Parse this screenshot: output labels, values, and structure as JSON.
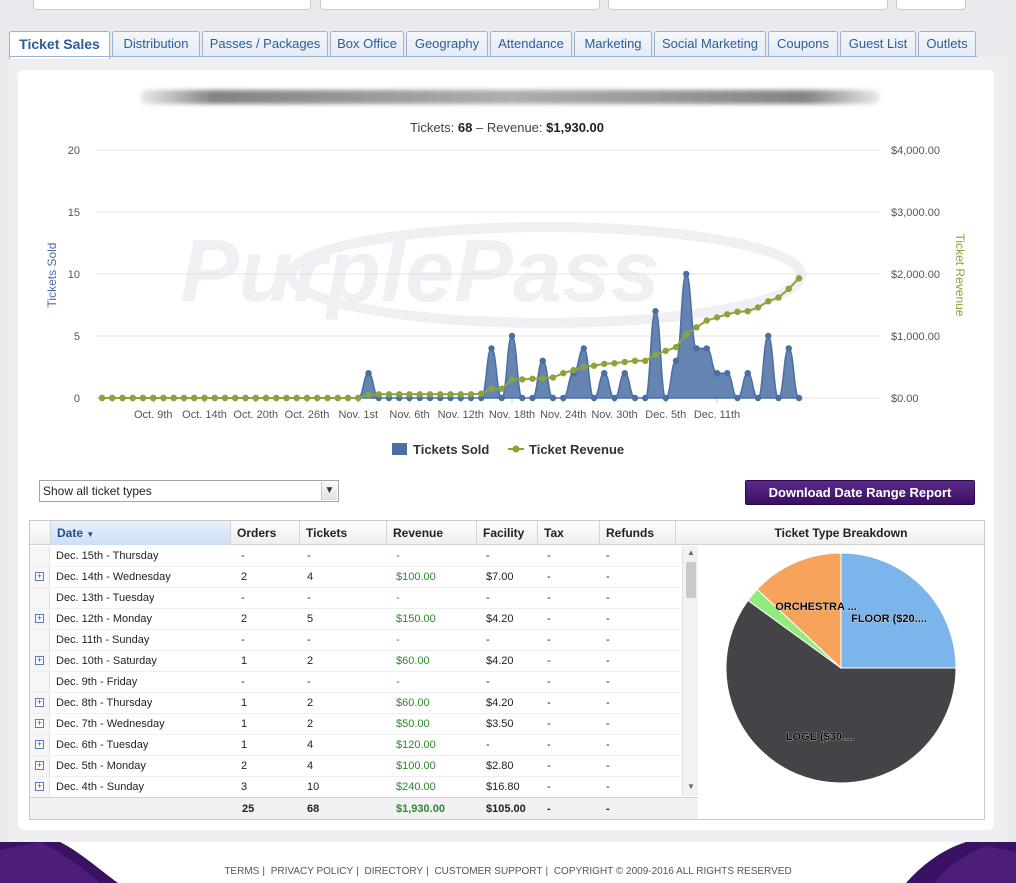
{
  "tabs": [
    {
      "label": "Ticket Sales",
      "active": true
    },
    {
      "label": "Distribution"
    },
    {
      "label": "Passes / Packages"
    },
    {
      "label": "Box Office"
    },
    {
      "label": "Geography"
    },
    {
      "label": "Attendance"
    },
    {
      "label": "Marketing"
    },
    {
      "label": "Social Marketing"
    },
    {
      "label": "Coupons"
    },
    {
      "label": "Guest List"
    },
    {
      "label": "Outlets"
    }
  ],
  "summary": {
    "tickets_label": "Tickets:",
    "tickets_value": "68",
    "sep": "–",
    "revenue_label": "Revenue:",
    "revenue_value": "$1,930.00"
  },
  "watermark": "PurplePass",
  "chart_data": {
    "type": "area",
    "xlabel": "",
    "ylabel": "Tickets Sold",
    "y2label": "Ticket Revenue",
    "ylim": [
      0,
      20
    ],
    "y2lim": [
      0,
      4000
    ],
    "yticks": [
      "0",
      "5",
      "10",
      "15",
      "20"
    ],
    "y2ticks": [
      "$0.00",
      "$1,000.00",
      "$2,000.00",
      "$3,000.00",
      "$4,000.00"
    ],
    "xticks": [
      {
        "label": "Oct. 9th",
        "day": 5
      },
      {
        "label": "Oct. 14th",
        "day": 10
      },
      {
        "label": "Oct. 20th",
        "day": 15
      },
      {
        "label": "Oct. 26th",
        "day": 20
      },
      {
        "label": "Nov. 1st",
        "day": 25
      },
      {
        "label": "Nov. 6th",
        "day": 30
      },
      {
        "label": "Nov. 12th",
        "day": 35
      },
      {
        "label": "Nov. 18th",
        "day": 40
      },
      {
        "label": "Nov. 24th",
        "day": 45
      },
      {
        "label": "Nov. 30th",
        "day": 50
      },
      {
        "label": "Dec. 5th",
        "day": 55
      },
      {
        "label": "Dec. 11th",
        "day": 60
      }
    ],
    "series": [
      {
        "name": "Tickets Sold",
        "color": "#4a6fa5",
        "values": [
          0,
          0,
          0,
          0,
          0,
          0,
          0,
          0,
          0,
          0,
          0,
          0,
          0,
          0,
          0,
          0,
          0,
          0,
          0,
          0,
          0,
          0,
          0,
          0,
          0,
          0,
          2,
          0,
          0,
          0,
          0,
          0,
          0,
          0,
          0,
          0,
          0,
          0,
          4,
          0,
          5,
          0,
          0,
          3,
          0,
          0,
          2,
          4,
          0,
          2,
          0,
          2,
          0,
          0,
          7,
          0,
          3,
          10,
          4,
          4,
          2,
          2,
          0,
          2,
          0,
          5,
          0,
          4,
          0
        ]
      },
      {
        "name": "Ticket Revenue",
        "color": "#8aa43a",
        "values": [
          0,
          0,
          0,
          0,
          0,
          0,
          0,
          0,
          0,
          0,
          0,
          0,
          0,
          0,
          0,
          0,
          0,
          0,
          0,
          0,
          0,
          0,
          0,
          0,
          0,
          0,
          50,
          60,
          60,
          60,
          60,
          60,
          60,
          60,
          60,
          60,
          60,
          70,
          150,
          150,
          300,
          300,
          310,
          320,
          330,
          400,
          450,
          500,
          520,
          550,
          560,
          580,
          600,
          600,
          700,
          760,
          820,
          1030,
          1140,
          1250,
          1300,
          1350,
          1390,
          1400,
          1460,
          1560,
          1620,
          1760,
          1930
        ]
      }
    ],
    "legend": [
      "Tickets Sold",
      "Ticket Revenue"
    ],
    "legend_position": "bottom"
  },
  "filter": {
    "selected": "Show all ticket types"
  },
  "download_button": "Download Date Range Report",
  "grid": {
    "columns": [
      "Date",
      "Orders",
      "Tickets",
      "Revenue",
      "Facility",
      "Tax",
      "Refunds"
    ],
    "rows": [
      {
        "date": "Dec. 15th - Thursday",
        "orders": "-",
        "tickets": "-",
        "revenue": "-",
        "facility": "-",
        "tax": "-",
        "refunds": "-",
        "expand": false
      },
      {
        "date": "Dec. 14th - Wednesday",
        "orders": "2",
        "tickets": "4",
        "revenue": "$100.00",
        "facility": "$7.00",
        "tax": "-",
        "refunds": "-",
        "expand": true
      },
      {
        "date": "Dec. 13th - Tuesday",
        "orders": "-",
        "tickets": "-",
        "revenue": "-",
        "facility": "-",
        "tax": "-",
        "refunds": "-",
        "expand": false
      },
      {
        "date": "Dec. 12th - Monday",
        "orders": "2",
        "tickets": "5",
        "revenue": "$150.00",
        "facility": "$4.20",
        "tax": "-",
        "refunds": "-",
        "expand": true
      },
      {
        "date": "Dec. 11th - Sunday",
        "orders": "-",
        "tickets": "-",
        "revenue": "-",
        "facility": "-",
        "tax": "-",
        "refunds": "-",
        "expand": false
      },
      {
        "date": "Dec. 10th - Saturday",
        "orders": "1",
        "tickets": "2",
        "revenue": "$60.00",
        "facility": "$4.20",
        "tax": "-",
        "refunds": "-",
        "expand": true
      },
      {
        "date": "Dec. 9th - Friday",
        "orders": "-",
        "tickets": "-",
        "revenue": "-",
        "facility": "-",
        "tax": "-",
        "refunds": "-",
        "expand": false
      },
      {
        "date": "Dec. 8th - Thursday",
        "orders": "1",
        "tickets": "2",
        "revenue": "$60.00",
        "facility": "$4.20",
        "tax": "-",
        "refunds": "-",
        "expand": true
      },
      {
        "date": "Dec. 7th - Wednesday",
        "orders": "1",
        "tickets": "2",
        "revenue": "$50.00",
        "facility": "$3.50",
        "tax": "-",
        "refunds": "-",
        "expand": true
      },
      {
        "date": "Dec. 6th - Tuesday",
        "orders": "1",
        "tickets": "4",
        "revenue": "$120.00",
        "facility": "-",
        "tax": "-",
        "refunds": "-",
        "expand": true
      },
      {
        "date": "Dec. 5th - Monday",
        "orders": "2",
        "tickets": "4",
        "revenue": "$100.00",
        "facility": "$2.80",
        "tax": "-",
        "refunds": "-",
        "expand": true
      },
      {
        "date": "Dec. 4th - Sunday",
        "orders": "3",
        "tickets": "10",
        "revenue": "$240.00",
        "facility": "$16.80",
        "tax": "-",
        "refunds": "-",
        "expand": true
      }
    ],
    "totals": {
      "orders": "25",
      "tickets": "68",
      "revenue": "$1,930.00",
      "facility": "$105.00",
      "tax": "-",
      "refunds": "-"
    }
  },
  "pie": {
    "title": "Ticket Type Breakdown",
    "slices": [
      {
        "label": "FLOOR ($20....",
        "value": 25,
        "color": "#7cb5ec"
      },
      {
        "label": "LOGE ($30....",
        "value": 60,
        "color": "#434348"
      },
      {
        "label": "",
        "value": 2,
        "color": "#90ed7d"
      },
      {
        "label": "ORCHESTRA ...",
        "value": 13,
        "color": "#f7a35c"
      }
    ]
  },
  "footer": {
    "links": [
      "TERMS",
      "PRIVACY POLICY",
      "DIRECTORY",
      "CUSTOMER SUPPORT"
    ],
    "copyright": "COPYRIGHT © 2009-2016 ALL RIGHTS RESERVED"
  },
  "colors": {
    "tab_text": "#2b5c9b",
    "brand_purple": "#3a0f63",
    "money_green": "#2c8a2c"
  }
}
